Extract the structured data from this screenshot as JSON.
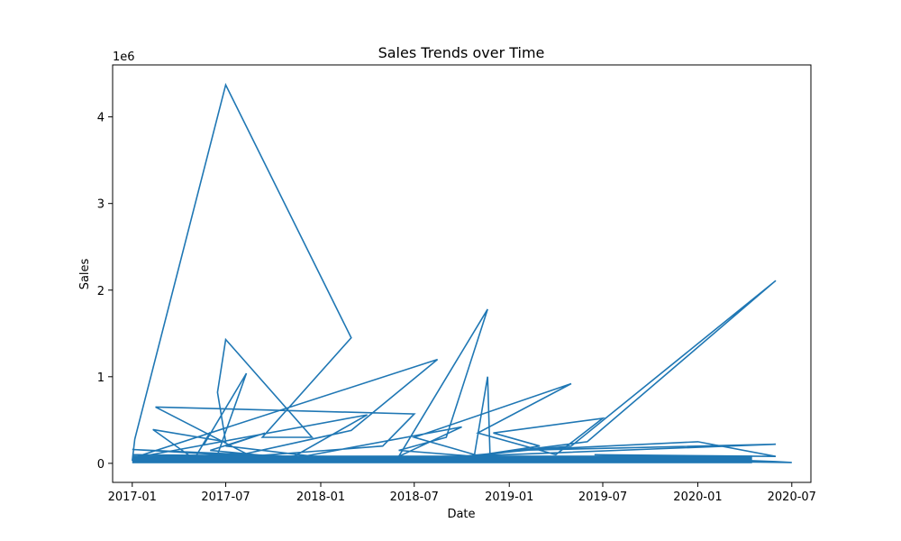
{
  "chart_data": {
    "type": "line",
    "title": "Sales Trends over Time",
    "xlabel": "Date",
    "ylabel": "Sales",
    "y_offset_label": "1e6",
    "xlim": [
      "2016-11-24",
      "2020-08-07"
    ],
    "ylim": [
      -220000,
      4600000
    ],
    "x_ticks": [
      "2017-01",
      "2017-07",
      "2018-01",
      "2018-07",
      "2019-01",
      "2019-07",
      "2020-01",
      "2020-07"
    ],
    "y_ticks": [
      0,
      1,
      2,
      3,
      4
    ],
    "grid": false,
    "line_color": "#1f77b4",
    "series": [
      {
        "x": [
          "2017-01-01",
          "2017-01-06",
          "2017-07-01",
          "2018-03-01",
          "2017-09-10",
          "2017-12-15",
          "2017-07-01",
          "2017-06-15",
          "2017-07-01",
          "2017-02-10",
          "2017-05-01",
          "2017-06-01",
          "2017-05-20",
          "2017-08-10",
          "2017-06-15",
          "2017-10-01",
          "2017-06-01",
          "2017-09-15",
          "2017-07-01",
          "2018-01-15",
          "2017-01-01",
          "2017-08-20",
          "2017-02-15",
          "2018-07-01",
          "2018-05-01",
          "2017-07-01",
          "2018-03-01",
          "2018-08-15",
          "2017-01-01",
          "2018-04-01",
          "2017-11-01",
          "2018-10-01",
          "2018-06-01",
          "2018-11-20",
          "2018-09-01",
          "2018-06-01",
          "2018-10-25",
          "2018-11-20",
          "2018-11-25",
          "2018-07-01",
          "2019-05-01",
          "2018-11-01",
          "2019-04-01",
          "2019-07-01",
          "2018-12-01",
          "2019-03-01",
          "2018-09-15",
          "2019-06-01",
          "2020-05-31",
          "2019-05-01",
          "2018-10-01",
          "2020-05-31",
          "2019-01-15",
          "2020-01-01",
          "2020-05-31",
          "2019-06-15",
          "2020-05-31",
          "2020-07-01",
          "2017-01-01",
          "2018-01-01",
          "2019-01-01",
          "2017-01-01"
        ],
        "y": [
          30000,
          280000,
          4370000,
          1450000,
          300000,
          300000,
          1430000,
          820000,
          250000,
          390000,
          50000,
          360000,
          220000,
          1040000,
          100000,
          80000,
          150000,
          350000,
          200000,
          60000,
          160000,
          80000,
          650000,
          570000,
          200000,
          60000,
          380000,
          1200000,
          60000,
          560000,
          50000,
          420000,
          80000,
          1780000,
          300000,
          150000,
          80000,
          1000000,
          50000,
          300000,
          920000,
          350000,
          100000,
          520000,
          350000,
          200000,
          50000,
          250000,
          2110000,
          200000,
          80000,
          220000,
          150000,
          250000,
          80000,
          100000,
          20000,
          10000,
          100000,
          80000,
          50000,
          20000
        ]
      }
    ]
  }
}
